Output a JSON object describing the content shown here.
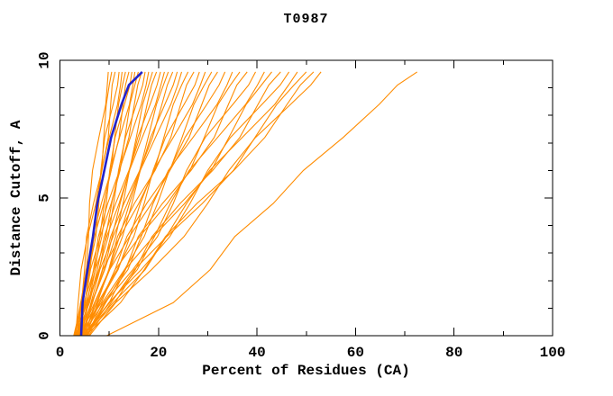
{
  "chart_data": {
    "type": "line",
    "title": "T0987",
    "xlabel": "Percent of Residues (CA)",
    "ylabel": "Distance Cutoff, A",
    "xlim": [
      0,
      100
    ],
    "ylim": [
      0,
      10
    ],
    "x_major_ticks": [
      0,
      20,
      40,
      60,
      80,
      100
    ],
    "x_minor_ticks": [
      10,
      30,
      50,
      70,
      90
    ],
    "y_major_ticks": [
      0,
      5,
      10
    ],
    "y_minor_ticks": [
      1,
      2,
      3,
      4,
      6,
      7,
      8,
      9
    ],
    "grid": false,
    "legend": "none",
    "colors": {
      "model_lines": "#ff8c00",
      "highlight_line": "#2222cc",
      "axis": "#000000",
      "text": "#000000",
      "background": "#ffffff"
    },
    "y_levels": [
      0,
      1.2,
      2.4,
      3.6,
      4.8,
      6.0,
      7.2,
      8.4,
      9.1,
      9.58
    ],
    "highlight_series_x": [
      4.3,
      4.6,
      5.6,
      6.7,
      7.6,
      9.0,
      10.4,
      12.5,
      14.0,
      16.7
    ],
    "model_series_x": [
      [
        3.0,
        4.2,
        5.4,
        5.8,
        6.0,
        6.6,
        7.9,
        9.3,
        9.6,
        9.8
      ],
      [
        3.2,
        3.7,
        4.3,
        5.6,
        7.3,
        8.5,
        8.9,
        9.4,
        10.0,
        10.5
      ],
      [
        2.8,
        4.4,
        5.0,
        5.4,
        6.8,
        8.5,
        9.8,
        10.3,
        10.6,
        11.2
      ],
      [
        3.4,
        4.2,
        5.9,
        7.3,
        7.9,
        8.3,
        9.1,
        10.8,
        11.7,
        12.0
      ],
      [
        3.0,
        4.5,
        6.1,
        6.9,
        7.4,
        8.4,
        10.0,
        11.7,
        12.3,
        12.6
      ],
      [
        3.6,
        4.4,
        5.3,
        7.0,
        8.9,
        10.4,
        11.1,
        11.9,
        12.7,
        13.3
      ],
      [
        3.2,
        5.1,
        6.0,
        6.7,
        8.4,
        10.4,
        12.0,
        12.8,
        13.3,
        14.0
      ],
      [
        3.8,
        4.9,
        6.9,
        8.5,
        9.4,
        10.1,
        11.2,
        13.1,
        14.2,
        14.6
      ],
      [
        3.5,
        5.3,
        7.2,
        8.1,
        9.0,
        10.2,
        12.1,
        14.1,
        14.8,
        15.2
      ],
      [
        4.0,
        5.1,
        6.2,
        8.2,
        10.4,
        12.2,
        13.2,
        14.2,
        15.2,
        15.9
      ],
      [
        3.3,
        5.5,
        6.8,
        7.8,
        9.7,
        12.1,
        14.0,
        15.1,
        15.8,
        16.6
      ],
      [
        4.2,
        5.6,
        7.9,
        9.8,
        10.9,
        11.9,
        13.3,
        15.5,
        16.8,
        17.3
      ],
      [
        3.7,
        5.8,
        8.0,
        9.3,
        10.5,
        12.0,
        14.3,
        16.5,
        17.5,
        18.0
      ],
      [
        4.4,
        5.8,
        7.2,
        9.5,
        12.0,
        14.1,
        15.5,
        16.8,
        18.0,
        18.8
      ],
      [
        3.4,
        6.0,
        7.6,
        9.0,
        11.3,
        14.0,
        16.2,
        17.7,
        18.6,
        19.6
      ],
      [
        4.8,
        6.5,
        9.1,
        11.3,
        12.8,
        14.1,
        15.8,
        18.3,
        19.7,
        20.4
      ],
      [
        3.9,
        6.4,
        9.0,
        10.6,
        12.2,
        14.1,
        16.7,
        19.4,
        20.5,
        21.2
      ],
      [
        4.5,
        6.3,
        8.1,
        10.8,
        13.7,
        16.2,
        17.9,
        19.6,
        21.0,
        22.0
      ],
      [
        3.6,
        6.6,
        8.6,
        10.3,
        13.0,
        16.2,
        18.8,
        20.7,
        21.8,
        22.9
      ],
      [
        5.0,
        7.1,
        10.1,
        12.7,
        14.6,
        16.3,
        18.4,
        21.3,
        23.0,
        23.8
      ],
      [
        4.1,
        7.0,
        10.0,
        12.1,
        14.1,
        16.3,
        19.4,
        22.5,
        23.9,
        24.7
      ],
      [
        4.6,
        6.6,
        8.7,
        12.2,
        16.0,
        19.2,
        21.1,
        23.0,
        24.7,
        26.0
      ],
      [
        3.8,
        7.6,
        9.9,
        11.7,
        15.1,
        19.3,
        22.5,
        24.5,
        25.7,
        27.2
      ],
      [
        5.2,
        7.7,
        11.6,
        15.0,
        17.1,
        18.9,
        21.4,
        25.2,
        27.4,
        28.3
      ],
      [
        4.3,
        8.0,
        11.8,
        14.2,
        16.3,
        19.0,
        23.0,
        26.9,
        28.5,
        29.5
      ],
      [
        4.9,
        7.4,
        10.1,
        14.1,
        18.6,
        22.3,
        24.8,
        27.2,
        29.3,
        30.8
      ],
      [
        4.0,
        8.4,
        11.2,
        13.6,
        17.6,
        22.3,
        26.2,
        28.8,
        30.3,
        32.0
      ],
      [
        5.5,
        8.6,
        13.1,
        17.1,
        19.8,
        22.2,
        25.4,
        29.8,
        32.3,
        33.5
      ],
      [
        4.4,
        8.9,
        13.8,
        16.5,
        18.9,
        22.0,
        27.0,
        31.9,
        33.9,
        35.0
      ],
      [
        5.1,
        8.1,
        11.2,
        16.2,
        21.8,
        26.4,
        29.3,
        32.1,
        34.6,
        36.5
      ],
      [
        4.6,
        10.0,
        13.3,
        15.9,
        20.8,
        26.6,
        31.3,
        34.2,
        35.9,
        38.0
      ],
      [
        5.4,
        9.1,
        14.8,
        19.8,
        23.0,
        25.7,
        29.5,
        35.1,
        38.3,
        39.7
      ],
      [
        4.8,
        10.1,
        15.7,
        19.2,
        22.4,
        26.2,
        32.0,
        37.7,
        40.1,
        41.5
      ],
      [
        5.6,
        9.3,
        13.2,
        19.0,
        25.3,
        30.7,
        34.3,
        37.8,
        40.9,
        43.0
      ],
      [
        5.0,
        11.2,
        15.3,
        18.7,
        24.4,
        31.0,
        36.5,
        40.2,
        42.4,
        44.8
      ],
      [
        5.3,
        9.9,
        16.5,
        22.3,
        26.4,
        30.0,
        34.6,
        41.0,
        44.7,
        46.5
      ],
      [
        4.7,
        10.8,
        17.3,
        21.6,
        25.7,
        30.4,
        37.0,
        43.6,
        46.4,
        48.2
      ],
      [
        5.8,
        10.4,
        15.1,
        21.7,
        28.9,
        35.2,
        39.6,
        44.0,
        47.5,
        50.0
      ],
      [
        5.2,
        12.3,
        17.1,
        21.4,
        27.8,
        35.3,
        41.6,
        46.1,
        48.8,
        51.5
      ],
      [
        6.0,
        11.3,
        18.6,
        25.2,
        30.0,
        34.3,
        39.7,
        46.8,
        50.9,
        53.0
      ],
      [
        9.5,
        23.0,
        30.5,
        35.5,
        43.3,
        49.4,
        57.5,
        64.8,
        68.5,
        72.5
      ]
    ]
  }
}
